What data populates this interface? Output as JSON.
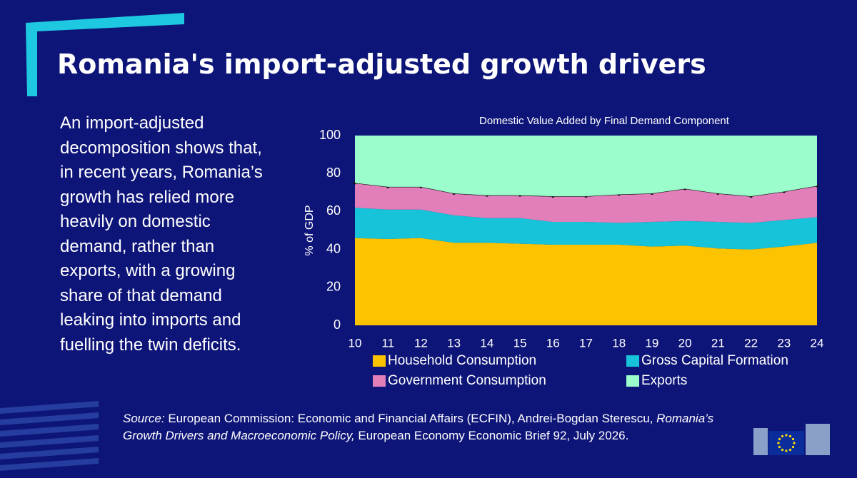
{
  "header": {
    "title": "Romania's import-adjusted growth drivers"
  },
  "body": {
    "text": "An import-adjusted decomposition shows that, in recent years, Romania’s growth has relied more heavily on domestic demand, rather than exports, with a growing share of that demand leaking into imports and fuelling the twin deficits."
  },
  "chart_data": {
    "type": "stacked-area",
    "title": "Domestic Value Added by Final Demand Component",
    "y_label": "% of GDP",
    "categories": [
      "10",
      "11",
      "12",
      "13",
      "14",
      "15",
      "16",
      "17",
      "18",
      "19",
      "20",
      "21",
      "22",
      "23",
      "24"
    ],
    "series": [
      {
        "name": "Household Consumption",
        "color": "#fdc300",
        "values": [
          46,
          45.5,
          46,
          43.5,
          43.5,
          43,
          42.5,
          42.5,
          42.5,
          41.5,
          42,
          40.5,
          40,
          41.5,
          43.5
        ]
      },
      {
        "name": "Gross Capital Formation",
        "color": "#17c3d8",
        "values": [
          16,
          15.5,
          15,
          14.5,
          13,
          13.5,
          12,
          12,
          11.5,
          13,
          13,
          14,
          14,
          14,
          13.5
        ]
      },
      {
        "name": "Government Consumption",
        "color": "#e27fba",
        "values": [
          13,
          12,
          12,
          11.5,
          12,
          12,
          13.5,
          13.5,
          15,
          15,
          17,
          15,
          14,
          15,
          16.5
        ]
      },
      {
        "name": "Exports",
        "color": "#9afdcb",
        "values": [
          25,
          27,
          27,
          30.5,
          31.5,
          31.5,
          32,
          32,
          31,
          30.5,
          28,
          30.5,
          32,
          29.5,
          26.5
        ]
      }
    ],
    "ylim": [
      0,
      100
    ],
    "yticks": [
      0,
      20,
      40,
      60,
      80,
      100
    ]
  },
  "source": {
    "label": "Source:",
    "text_1": "European Commission: Economic and Financial Affairs (ECFIN), Andrei-Bogdan Sterescu,",
    "publication": "Romania’s Growth Drivers and Macroeconomic Policy,",
    "text_2": "European Economy Economic Brief 92, July 2026."
  }
}
